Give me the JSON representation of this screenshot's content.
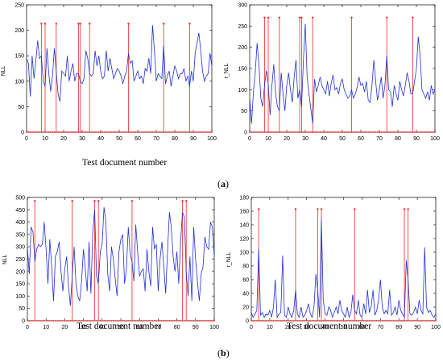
{
  "captions": {
    "a": {
      "open": "(",
      "letter": "a",
      "close": ")"
    },
    "b": {
      "open": "(",
      "letter": "b",
      "close": ")"
    }
  },
  "colors": {
    "series": "#1f2fd6",
    "markers": "#ef2b2b",
    "axis": "#000000"
  },
  "chart_data": [
    {
      "id": "a-left",
      "type": "line",
      "xlabel": "Test document number",
      "ylabel": "NLL",
      "xlim": [
        0,
        100
      ],
      "ylim": [
        0,
        250
      ],
      "xticks": [
        0,
        10,
        20,
        30,
        40,
        50,
        60,
        70,
        80,
        90,
        100
      ],
      "yticks": [
        0,
        50,
        100,
        150,
        200,
        250
      ],
      "grid": false,
      "series": [
        {
          "name": "",
          "values": [
            145,
            135,
            70,
            150,
            105,
            140,
            180,
            145,
            150,
            100,
            90,
            165,
            115,
            80,
            110,
            165,
            120,
            75,
            60,
            120,
            115,
            110,
            150,
            100,
            120,
            135,
            100,
            115,
            115,
            100,
            95,
            105,
            160,
            145,
            115,
            110,
            115,
            160,
            130,
            150,
            120,
            105,
            110,
            160,
            120,
            145,
            125,
            105,
            115,
            125,
            120,
            110,
            95,
            110,
            120,
            155,
            135,
            140,
            100,
            110,
            120,
            105,
            110,
            95,
            125,
            120,
            145,
            115,
            210,
            160,
            100,
            115,
            110,
            105,
            170,
            95,
            110,
            120,
            90,
            110,
            130,
            120,
            105,
            115,
            115,
            125,
            100,
            110,
            90,
            120,
            100,
            155,
            175,
            195,
            160,
            120,
            100,
            110,
            115,
            155,
            130
          ]
        }
      ],
      "markers": {
        "x": [
          8,
          10,
          16,
          28,
          29,
          34,
          55,
          74,
          88
        ],
        "height": 213,
        "baseline_dots": true
      }
    },
    {
      "id": "a-right",
      "type": "line",
      "xlabel": "",
      "ylabel": "r_NLL",
      "xlim": [
        0,
        100
      ],
      "ylim": [
        0,
        300
      ],
      "xticks": [
        0,
        10,
        20,
        30,
        40,
        50,
        60,
        70,
        80,
        90,
        100
      ],
      "yticks": [
        0,
        50,
        100,
        150,
        200,
        250,
        300
      ],
      "grid": false,
      "series": [
        {
          "name": "",
          "values": [
            80,
            20,
            95,
            140,
            210,
            160,
            80,
            60,
            110,
            145,
            115,
            40,
            110,
            160,
            90,
            60,
            50,
            140,
            90,
            50,
            110,
            140,
            100,
            70,
            130,
            170,
            80,
            100,
            60,
            170,
            255,
            130,
            90,
            55,
            20,
            125,
            95,
            110,
            130,
            110,
            100,
            90,
            120,
            85,
            115,
            135,
            100,
            105,
            90,
            115,
            125,
            100,
            90,
            80,
            85,
            100,
            80,
            90,
            105,
            130,
            110,
            115,
            95,
            120,
            75,
            70,
            110,
            170,
            120,
            75,
            100,
            130,
            80,
            110,
            180,
            100,
            95,
            60,
            110,
            90,
            75,
            120,
            100,
            85,
            110,
            140,
            120,
            90,
            90,
            120,
            150,
            225,
            180,
            100,
            90,
            80,
            95,
            75,
            110,
            90,
            100
          ]
        }
      ],
      "markers": {
        "x": [
          8,
          10,
          16,
          27,
          28,
          34,
          55,
          74,
          88
        ],
        "height": 270,
        "baseline_dots": true
      }
    },
    {
      "id": "b-left",
      "type": "line",
      "xlabel": "Test document number",
      "ylabel": "NLL",
      "xlim": [
        0,
        100
      ],
      "ylim": [
        0,
        500
      ],
      "xticks": [
        0,
        10,
        20,
        30,
        40,
        50,
        60,
        70,
        80,
        90,
        100
      ],
      "yticks": [
        0,
        50,
        100,
        150,
        200,
        250,
        300,
        350,
        400,
        450,
        500
      ],
      "grid": false,
      "series": [
        {
          "name": "",
          "values": [
            300,
            190,
            380,
            360,
            240,
            290,
            310,
            300,
            310,
            400,
            290,
            150,
            330,
            220,
            80,
            260,
            280,
            320,
            200,
            120,
            210,
            260,
            140,
            60,
            180,
            300,
            150,
            100,
            80,
            160,
            290,
            210,
            120,
            320,
            110,
            360,
            450,
            180,
            150,
            280,
            310,
            460,
            400,
            190,
            120,
            300,
            250,
            170,
            100,
            280,
            330,
            350,
            150,
            210,
            380,
            270,
            240,
            160,
            390,
            280,
            180,
            200,
            210,
            120,
            290,
            200,
            140,
            380,
            290,
            310,
            120,
            250,
            320,
            220,
            110,
            280,
            440,
            380,
            260,
            200,
            280,
            150,
            320,
            440,
            420,
            200,
            100,
            260,
            80,
            380,
            250,
            160,
            80,
            190,
            220,
            340,
            300,
            290,
            400,
            380,
            260
          ]
        }
      ],
      "markers": {
        "x": [
          4,
          24,
          36,
          38,
          56,
          83,
          85
        ],
        "height": 486,
        "baseline_dots": true
      }
    },
    {
      "id": "b-right",
      "type": "line",
      "xlabel": "Test document number",
      "ylabel": "r_NLL",
      "xlim": [
        0,
        100
      ],
      "ylim": [
        0,
        180
      ],
      "xticks": [
        0,
        10,
        20,
        30,
        40,
        50,
        60,
        70,
        80,
        90,
        100
      ],
      "yticks": [
        0,
        20,
        40,
        60,
        80,
        100,
        120,
        140,
        160,
        180
      ],
      "grid": false,
      "series": [
        {
          "name": "",
          "values": [
            12,
            5,
            10,
            15,
            105,
            8,
            12,
            5,
            10,
            8,
            15,
            5,
            20,
            60,
            5,
            10,
            12,
            95,
            8,
            5,
            20,
            10,
            5,
            15,
            45,
            10,
            5,
            20,
            5,
            8,
            15,
            25,
            10,
            5,
            20,
            68,
            45,
            5,
            148,
            30,
            10,
            8,
            20,
            15,
            5,
            12,
            20,
            10,
            30,
            15,
            10,
            5,
            20,
            5,
            12,
            38,
            15,
            10,
            30,
            8,
            5,
            25,
            10,
            45,
            12,
            20,
            45,
            8,
            15,
            30,
            60,
            20,
            10,
            15,
            10,
            45,
            8,
            12,
            20,
            8,
            30,
            15,
            10,
            5,
            88,
            60,
            10,
            8,
            12,
            20,
            10,
            30,
            15,
            10,
            107,
            20,
            12,
            15,
            8,
            5,
            10
          ]
        }
      ],
      "markers": {
        "x": [
          4,
          24,
          36,
          38,
          56,
          83,
          85
        ],
        "height": 163,
        "baseline_dots": true
      }
    }
  ]
}
